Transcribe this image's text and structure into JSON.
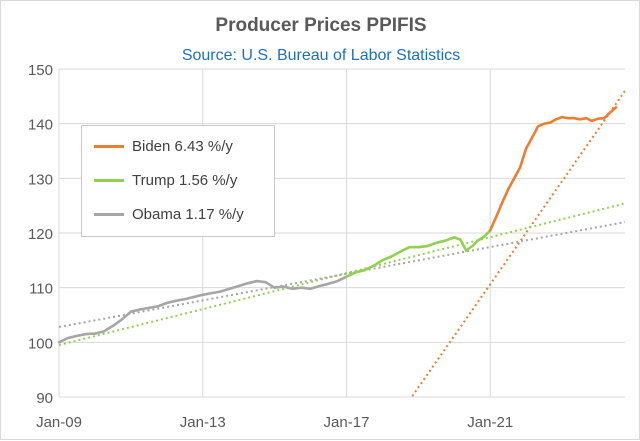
{
  "chart_data": {
    "type": "line",
    "title": "Producer Prices PPIFIS",
    "subtitle": "Source: U.S. Bureau of Labor Statistics",
    "xlabel": "",
    "ylabel": "",
    "xlim": [
      2009.0,
      2024.75
    ],
    "ylim": [
      90,
      150
    ],
    "x_ticks": [
      {
        "label": "Jan-09",
        "x": 2009.0
      },
      {
        "label": "Jan-13",
        "x": 2013.0
      },
      {
        "label": "Jan-17",
        "x": 2017.0
      },
      {
        "label": "Jan-21",
        "x": 2021.0
      }
    ],
    "y_ticks": [
      90,
      100,
      110,
      120,
      130,
      140,
      150
    ],
    "grid": {
      "x": true,
      "y": true
    },
    "legend": {
      "position": "top-left"
    },
    "series": [
      {
        "name": "Biden 6.43 %/y",
        "color": "#ed7d31",
        "x": [
          2021.0,
          2021.17,
          2021.33,
          2021.5,
          2021.67,
          2021.83,
          2022.0,
          2022.17,
          2022.33,
          2022.5,
          2022.67,
          2022.83,
          2023.0,
          2023.17,
          2023.33,
          2023.5,
          2023.67,
          2023.83,
          2024.0,
          2024.17,
          2024.33,
          2024.5
        ],
        "values": [
          120.5,
          123.0,
          125.5,
          128.0,
          130.0,
          132.0,
          135.5,
          137.5,
          139.5,
          140.0,
          140.2,
          140.8,
          141.2,
          141.0,
          141.0,
          140.8,
          141.0,
          140.5,
          140.9,
          141.0,
          142.0,
          143.0
        ]
      },
      {
        "name": "Trump 1.56 %/y",
        "color": "#92d050",
        "x": [
          2017.0,
          2017.25,
          2017.5,
          2017.75,
          2018.0,
          2018.25,
          2018.5,
          2018.75,
          2019.0,
          2019.25,
          2019.5,
          2019.75,
          2020.0,
          2020.17,
          2020.33,
          2020.5,
          2020.67,
          2020.83,
          2021.0
        ],
        "values": [
          112.0,
          112.8,
          113.2,
          114.0,
          115.0,
          115.7,
          116.6,
          117.4,
          117.4,
          117.6,
          118.2,
          118.6,
          119.2,
          118.8,
          116.8,
          117.6,
          118.7,
          119.3,
          120.5
        ]
      },
      {
        "name": "Obama 1.17 %/y",
        "color": "#a6a6a6",
        "x": [
          2009.0,
          2009.25,
          2009.5,
          2009.75,
          2010.0,
          2010.25,
          2010.5,
          2010.75,
          2011.0,
          2011.25,
          2011.5,
          2011.75,
          2012.0,
          2012.25,
          2012.5,
          2012.75,
          2013.0,
          2013.25,
          2013.5,
          2013.75,
          2014.0,
          2014.25,
          2014.5,
          2014.75,
          2015.0,
          2015.25,
          2015.5,
          2015.75,
          2016.0,
          2016.25,
          2016.5,
          2016.75,
          2017.0
        ],
        "values": [
          100.0,
          100.8,
          101.2,
          101.5,
          101.6,
          102.0,
          103.0,
          104.2,
          105.6,
          106.0,
          106.3,
          106.6,
          107.2,
          107.6,
          107.9,
          108.3,
          108.7,
          109.0,
          109.3,
          109.8,
          110.3,
          110.8,
          111.2,
          111.0,
          110.0,
          110.2,
          109.8,
          110.0,
          109.8,
          110.3,
          110.7,
          111.2,
          112.0
        ]
      }
    ],
    "trendlines": [
      {
        "series": "Biden 6.43 %/y",
        "color": "#ed7d31",
        "x": [
          2018.75,
          2024.75
        ],
        "values": [
          89.4,
          146.0
        ]
      },
      {
        "series": "Trump 1.56 %/y",
        "color": "#92d050",
        "x": [
          2009.0,
          2024.75
        ],
        "values": [
          99.5,
          125.4
        ]
      },
      {
        "series": "Obama 1.17 %/y",
        "color": "#a6a6a6",
        "x": [
          2009.0,
          2024.75
        ],
        "values": [
          102.8,
          122.0
        ]
      }
    ]
  }
}
